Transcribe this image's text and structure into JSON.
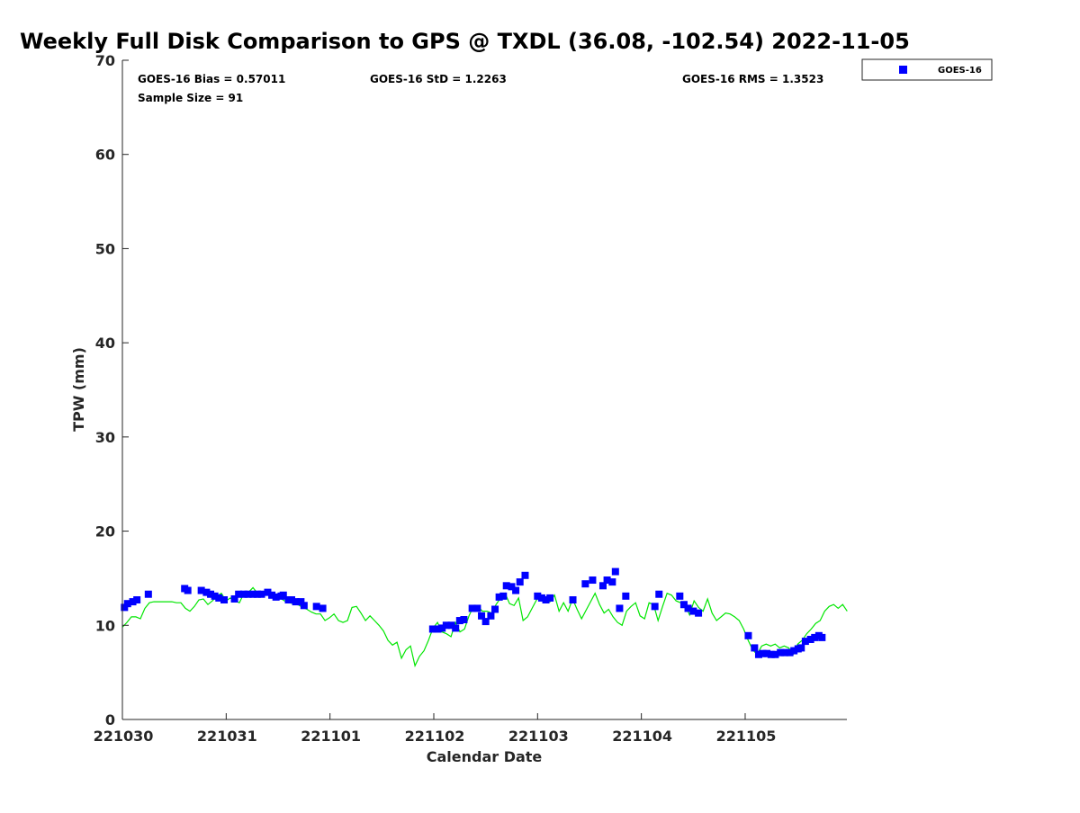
{
  "chart_data": {
    "type": "scatter",
    "title": "Weekly Full Disk Comparison to GPS @ TXDL (36.08, -102.54) 2022-11-05",
    "xlabel": "Calendar Date",
    "ylabel": "TPW (mm)",
    "xlim": [
      0,
      6.98
    ],
    "ylim": [
      0,
      70
    ],
    "x_units": "days since 221030",
    "x_tick_values": [
      0,
      1,
      2,
      3,
      4,
      5,
      6
    ],
    "x_tick_labels": [
      "221030",
      "221031",
      "221101",
      "221102",
      "221103",
      "221104",
      "221105"
    ],
    "y_ticks": [
      0,
      10,
      20,
      30,
      40,
      50,
      60,
      70
    ],
    "grid": false,
    "legend": {
      "placement": "top-right, outside",
      "entries": [
        "GOES-16"
      ]
    },
    "stats": {
      "bias": "GOES-16 Bias = 0.57011",
      "std": "GOES-16 StD = 1.2263",
      "rms": "GOES-16 RMS = 1.3523",
      "sample": "Sample Size = 91"
    },
    "colors": {
      "goes": "#0000ff",
      "gps": "#00e600"
    },
    "gps_series": {
      "name": "GPS",
      "x_start": 0,
      "x_step_days": 0.04337,
      "y": [
        9.8,
        10.3,
        10.9,
        10.9,
        10.7,
        11.8,
        12.4,
        12.5,
        12.5,
        12.5,
        12.5,
        12.5,
        12.4,
        12.4,
        11.8,
        11.5,
        12.0,
        12.7,
        12.8,
        12.2,
        12.6,
        13.1,
        13.4,
        12.6,
        12.9,
        12.6,
        12.4,
        13.4,
        13.5,
        14.0,
        13.4,
        13.1,
        13.8,
        13.4,
        13.2,
        12.9,
        12.6,
        12.4,
        12.3,
        12.2,
        11.9,
        11.7,
        11.4,
        11.2,
        11.2,
        10.5,
        10.8,
        11.2,
        10.5,
        10.3,
        10.5,
        11.9,
        12.0,
        11.3,
        10.5,
        11.0,
        10.5,
        10.0,
        9.4,
        8.4,
        7.9,
        8.2,
        6.5,
        7.4,
        7.8,
        5.7,
        6.7,
        7.3,
        8.4,
        9.7,
        10.3,
        9.3,
        9.1,
        8.8,
        10.3,
        9.3,
        9.6,
        11.0,
        12.0,
        12.0,
        11.5,
        11.5,
        11.3,
        12.2,
        12.9,
        13.4,
        12.3,
        12.1,
        12.9,
        10.5,
        10.9,
        11.8,
        12.7,
        13.2,
        12.6,
        12.5,
        13.2,
        11.5,
        12.4,
        11.5,
        12.8,
        11.7,
        10.7,
        11.6,
        12.5,
        13.4,
        12.2,
        11.3,
        11.7,
        10.9,
        10.3,
        10.0,
        11.5,
        12.0,
        12.4,
        11.0,
        10.7,
        12.4,
        12.2,
        10.5,
        12.0,
        13.4,
        13.2,
        12.6,
        12.4,
        12.2,
        11.1,
        12.6,
        11.9,
        11.5,
        12.8,
        11.3,
        10.5,
        10.9,
        11.3,
        11.2,
        10.9,
        10.5,
        9.6,
        8.4,
        7.4,
        6.9,
        7.8,
        8.0,
        7.8,
        8.0,
        7.6,
        7.8,
        7.6,
        6.9,
        8.0,
        8.4,
        9.1,
        9.6,
        10.2,
        10.5,
        11.5,
        12.0,
        12.2,
        11.8,
        12.2,
        11.5
      ]
    },
    "goes_series": {
      "name": "GOES-16",
      "x": [
        0.02,
        0.05,
        0.1,
        0.14,
        0.25,
        0.6,
        0.63,
        0.76,
        0.81,
        0.85,
        0.89,
        0.93,
        0.98,
        1.08,
        1.12,
        1.17,
        1.21,
        1.26,
        1.3,
        1.34,
        1.4,
        1.44,
        1.48,
        1.53,
        1.55,
        1.6,
        1.63,
        1.67,
        1.72,
        1.75,
        1.87,
        1.93,
        2.99,
        3.04,
        3.08,
        3.12,
        3.17,
        3.21,
        3.25,
        3.29,
        3.37,
        3.42,
        3.46,
        3.5,
        3.55,
        3.59,
        3.63,
        3.67,
        3.7,
        3.75,
        3.79,
        3.83,
        3.88,
        4.0,
        4.04,
        4.08,
        4.12,
        4.34,
        4.46,
        4.53,
        4.63,
        4.67,
        4.72,
        4.75,
        4.79,
        4.85,
        5.13,
        5.17,
        5.37,
        5.41,
        5.45,
        5.5,
        5.55,
        6.03,
        6.09,
        6.13,
        6.17,
        6.21,
        6.25,
        6.29,
        6.34,
        6.38,
        6.43,
        6.47,
        6.51,
        6.54,
        6.58,
        6.63,
        6.67,
        6.71,
        6.74
      ],
      "y": [
        11.9,
        12.3,
        12.5,
        12.7,
        13.3,
        13.9,
        13.7,
        13.7,
        13.5,
        13.3,
        13.1,
        12.9,
        12.7,
        12.8,
        13.3,
        13.3,
        13.3,
        13.3,
        13.3,
        13.3,
        13.5,
        13.2,
        13.0,
        13.1,
        13.2,
        12.7,
        12.7,
        12.5,
        12.5,
        12.1,
        12.0,
        11.8,
        9.6,
        9.6,
        9.7,
        10.0,
        10.0,
        9.7,
        10.5,
        10.6,
        11.8,
        11.8,
        11.0,
        10.4,
        11.0,
        11.7,
        13.0,
        13.1,
        14.2,
        14.1,
        13.7,
        14.6,
        15.3,
        13.1,
        12.9,
        12.7,
        12.9,
        12.7,
        14.4,
        14.8,
        14.2,
        14.8,
        14.6,
        15.7,
        11.8,
        13.1,
        12.0,
        13.3,
        13.1,
        12.2,
        11.8,
        11.5,
        11.3,
        8.9,
        7.6,
        6.9,
        7.0,
        7.0,
        6.9,
        6.9,
        7.1,
        7.1,
        7.1,
        7.3,
        7.5,
        7.6,
        8.3,
        8.5,
        8.7,
        8.9,
        8.7
      ]
    }
  }
}
